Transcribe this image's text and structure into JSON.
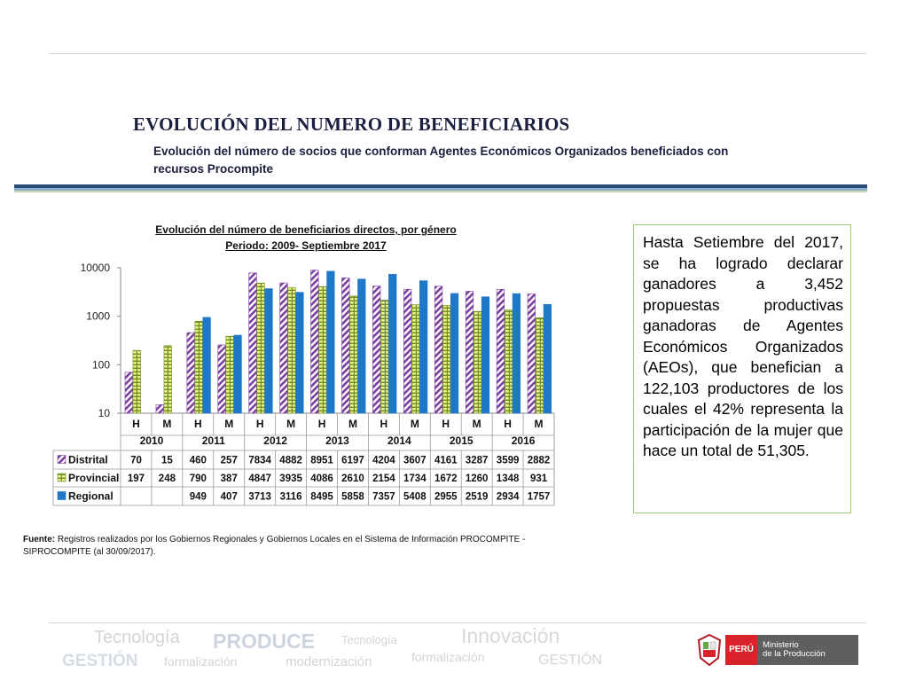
{
  "page": {
    "title": "EVOLUCIÓN DEL NUMERO DE BENEFICIARIOS",
    "subtitle": "Evolución del número de socios que conforman Agentes Económicos Organizados beneficiados con recursos Procompite"
  },
  "note": "Hasta Setiembre del 2017, se ha logrado declarar ganadores a 3,452 propuestas productivas ganadoras de Agentes Económicos Organizados (AEOs), que benefician a 122,103 productores de los cuales el 42% representa la participación de la mujer que hace un total de 51,305.",
  "source": {
    "label": "Fuente:",
    "text": "Registros realizados por los Gobiernos Regionales y Gobiernos Locales en el Sistema de Información PROCOMPITE - SIPROCOMPITE (al 30/09/2017)."
  },
  "chart_data": {
    "type": "bar",
    "title": "Evolución del número de beneficiarios directos, por género",
    "subtitle": "Periodo: 2009- Septiembre 2017",
    "y_scale": "log",
    "ylim": [
      10,
      10000
    ],
    "y_ticks": [
      "10",
      "100",
      "1000",
      "10000"
    ],
    "years": [
      "2010",
      "2011",
      "2012",
      "2013",
      "2014",
      "2015",
      "2016"
    ],
    "categories": [
      "H",
      "M",
      "H",
      "M",
      "H",
      "M",
      "H",
      "M",
      "H",
      "M",
      "H",
      "M",
      "H",
      "M"
    ],
    "series": [
      {
        "name": "Distrital",
        "color": "#7b3fa0",
        "values": [
          70,
          15,
          460,
          257,
          7834,
          4882,
          8951,
          6197,
          4204,
          3607,
          4161,
          3287,
          3599,
          2882
        ],
        "labels": [
          "70",
          "15",
          "460",
          "257",
          "7834",
          "4882",
          "8951",
          "6197",
          "4204",
          "3607",
          "4161",
          "3287",
          "3599",
          "2882"
        ]
      },
      {
        "name": "Provincial",
        "color": "#9cbc3c",
        "values": [
          197,
          248,
          790,
          387,
          4847,
          3935,
          4086,
          2610,
          2154,
          1734,
          1672,
          1260,
          1348,
          931
        ],
        "labels": [
          "197",
          "248",
          "790",
          "387",
          "4847",
          "3935",
          "4086",
          "2610",
          "2154",
          "1734",
          "1672",
          "1260",
          "1348",
          "931"
        ]
      },
      {
        "name": "Regional",
        "color": "#1f77c8",
        "values": [
          null,
          null,
          949,
          407,
          3713,
          3116,
          8495,
          5858,
          7357,
          5408,
          2955,
          2519,
          2934,
          1757
        ],
        "labels": [
          "",
          "",
          "949",
          "407",
          "3713",
          "3116",
          "8495",
          "5858",
          "7357",
          "5408",
          "2955",
          "2519",
          "2934",
          "1757"
        ]
      }
    ],
    "grid": false,
    "legend": "in-table-left"
  },
  "footer": {
    "watermarks": [
      "Tecnología",
      "PRODUCE",
      "Tecnología",
      "Innovación",
      "GESTIÓN",
      "formalización",
      "modernización",
      "formalización",
      "GESTIÓN"
    ],
    "logo_peru": "PERÚ",
    "logo_line1": "Ministerio",
    "logo_line2": "de la Producción"
  }
}
